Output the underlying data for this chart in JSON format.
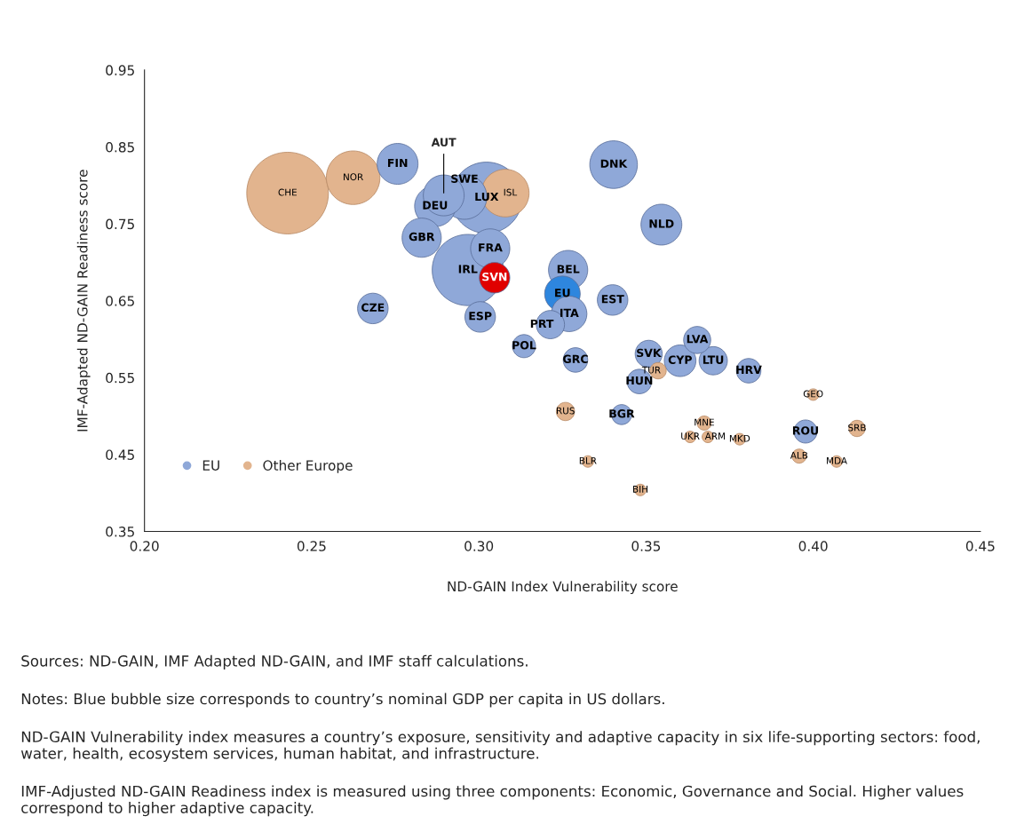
{
  "chart_data": {
    "type": "bubble",
    "xlabel": "ND-GAIN Index Vulnerability score",
    "ylabel": "IMF-Adapted ND-GAIN Readiness score",
    "xlim": [
      0.2,
      0.45
    ],
    "xticks": [
      {
        "value": 0.2,
        "label": "0.20"
      },
      {
        "value": 0.25,
        "label": "0.25"
      },
      {
        "value": 0.3,
        "label": "0.30"
      },
      {
        "value": 0.35,
        "label": "0.35"
      },
      {
        "value": 0.4,
        "label": "0.40"
      },
      {
        "value": 0.45,
        "label": "0.45"
      }
    ],
    "ylim": [
      0.35,
      0.95
    ],
    "yticks": [
      0.35,
      0.45,
      0.55,
      0.65,
      0.75,
      0.85,
      0.95
    ],
    "grid": false,
    "legend": "bottom left",
    "series": [
      {
        "name": "EU",
        "color": "#8fa8d8",
        "x": [
          0.2757,
          0.2869,
          0.2895,
          0.3023,
          0.2957,
          0.2829,
          0.3034,
          0.2967,
          0.3047,
          0.3267,
          0.325,
          0.327,
          0.3214,
          0.34,
          0.2683,
          0.3004,
          0.3135,
          0.3289,
          0.3403,
          0.3546,
          0.3653,
          0.3508,
          0.3602,
          0.3701,
          0.3807,
          0.348,
          0.3427,
          0.3977
        ],
        "values": [
          0.828,
          0.773,
          0.787,
          0.784,
          0.785,
          0.732,
          0.718,
          0.69,
          0.68,
          0.69,
          0.659,
          0.633,
          0.619,
          0.651,
          0.64,
          0.629,
          0.591,
          0.573,
          0.827,
          0.749,
          0.599,
          0.581,
          0.572,
          0.572,
          0.559,
          0.545,
          0.502,
          0.48
        ],
        "sizes": [
          0.25,
          0.25,
          0.25,
          0.76,
          0.3,
          0.23,
          0.23,
          0.76,
          0.14,
          0.23,
          0.19,
          0.19,
          0.12,
          0.14,
          0.14,
          0.14,
          0.08,
          0.09,
          0.34,
          0.25,
          0.11,
          0.11,
          0.15,
          0.12,
          0.09,
          0.09,
          0.06,
          0.08
        ],
        "colors": [
          "#8fa8d8",
          "#8fa8d8",
          "#8fa8d8",
          "#8fa8d8",
          "#8fa8d8",
          "#8fa8d8",
          "#8fa8d8",
          "#8fa8d8",
          "#e00000",
          "#8fa8d8",
          "#2e86de",
          "#8fa8d8",
          "#8fa8d8",
          "#8fa8d8",
          "#8fa8d8",
          "#8fa8d8",
          "#8fa8d8",
          "#8fa8d8",
          "#8fa8d8",
          "#8fa8d8",
          "#8fa8d8",
          "#8fa8d8",
          "#8fa8d8",
          "#8fa8d8",
          "#8fa8d8",
          "#8fa8d8",
          "#8fa8d8",
          "#8fa8d8"
        ],
        "value_labels": [
          "FIN",
          "DEU",
          null,
          "LUX",
          "SWE",
          "GBR",
          "FRA",
          "IRL",
          "SVN",
          "BEL",
          "EU",
          "ITA",
          "PRT",
          "EST",
          "CZE",
          "ESP",
          "POL",
          "GRC",
          "DNK",
          "NLD",
          "LVA",
          "SVK",
          "CYP",
          "LTU",
          "HRV",
          "HUN",
          "BGR",
          "ROU"
        ]
      },
      {
        "name": "Other Europe",
        "color": "#e2b48e",
        "x": [
          0.2428,
          0.2624,
          0.3079,
          0.3536,
          0.4,
          0.3259,
          0.3674,
          0.3632,
          0.3685,
          0.378,
          0.4131,
          0.3958,
          0.407,
          0.3326,
          0.3483
        ],
        "values": [
          0.79,
          0.81,
          0.79,
          0.559,
          0.528,
          0.506,
          0.491,
          0.473,
          0.473,
          0.47,
          0.484,
          0.448,
          0.441,
          0.441,
          0.404
        ],
        "sizes": [
          1.0,
          0.43,
          0.34,
          0.04,
          0.02,
          0.05,
          0.03,
          0.02,
          0.02,
          0.02,
          0.04,
          0.03,
          0.02,
          0.02,
          0.02
        ],
        "value_labels": [
          "CHE",
          "NOR",
          "ISL",
          "TUR",
          "GEO",
          "RUS",
          "MNE",
          "UKR",
          "ARM",
          "MKD",
          "SRB",
          "ALB",
          "MDA",
          "BLR",
          "BIH"
        ]
      }
    ],
    "annotations": [
      {
        "text": "AUT",
        "x": 0.2895,
        "y": 0.787
      },
      "Sources: ND-GAIN, IMF Adapted ND-GAIN, and IMF staff calculations.",
      "Notes: Blue bubble size corresponds to country’s nominal GDP per capita in US dollars.",
      "ND-GAIN Vulnerability index measures a country’s exposure, sensitivity and adaptive capacity in six life-supporting sectors: food, water, health, ecosystem services, human habitat, and infrastructure.",
      "IMF-Adjusted ND-GAIN Readiness index is measured using three components: Economic, Governance and Social. Higher values correspond to higher adaptive capacity."
    ]
  }
}
